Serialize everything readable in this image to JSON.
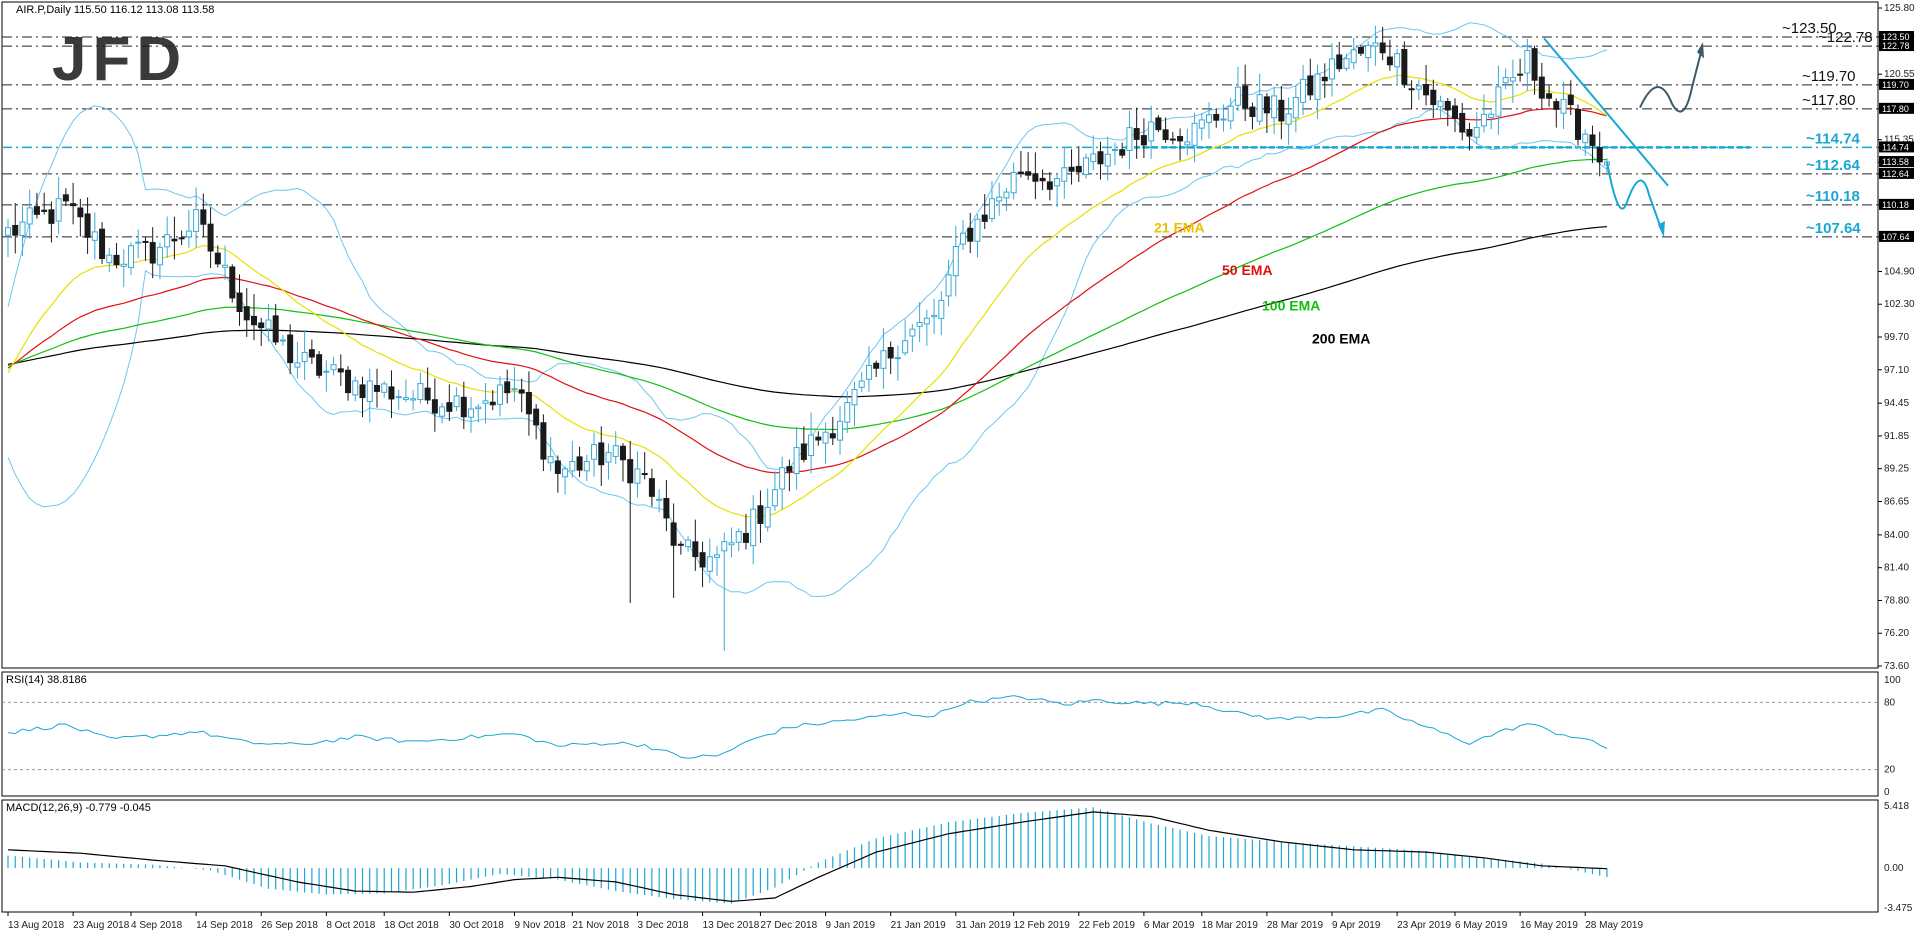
{
  "chart_data": {
    "type": "candlestick",
    "symbol_header": "AIR.P,Daily  115.50 116.12 113.08 113.58",
    "watermark": "JFD",
    "price_axis": {
      "ylim": [
        73.6,
        125.8
      ],
      "ticks": [
        "125.80",
        "123.50",
        "122.78",
        "120.55",
        "119.70",
        "117.80",
        "115.35",
        "114.74",
        "113.58",
        "112.64",
        "110.18",
        "107.64",
        "104.90",
        "102.30",
        "99.70",
        "97.10",
        "94.45",
        "91.85",
        "89.25",
        "86.65",
        "84.00",
        "81.40",
        "78.80",
        "76.20",
        "73.60"
      ]
    },
    "x_dates": [
      "13 Aug 2018",
      "23 Aug 2018",
      "4 Sep 2018",
      "14 Sep 2018",
      "26 Sep 2018",
      "8 Oct 2018",
      "18 Oct 2018",
      "30 Oct 2018",
      "9 Nov 2018",
      "21 Nov 2018",
      "3 Dec 2018",
      "13 Dec 2018",
      "27 Dec 2018",
      "9 Jan 2019",
      "21 Jan 2019",
      "31 Jan 2019",
      "12 Feb 2019",
      "22 Feb 2019",
      "6 Mar 2019",
      "18 Mar 2019",
      "28 Mar 2019",
      "9 Apr 2019",
      "23 Apr 2019",
      "6 May 2019",
      "16 May 2019",
      "28 May 2019"
    ],
    "levels": [
      {
        "value": 123.5,
        "label": "~123.50",
        "style": "dark"
      },
      {
        "value": 122.78,
        "label": "~122.78",
        "style": "dark"
      },
      {
        "value": 119.7,
        "label": "~119.70",
        "style": "dark"
      },
      {
        "value": 117.8,
        "label": "~117.80",
        "style": "dark"
      },
      {
        "value": 114.74,
        "label": "~114.74",
        "style": "cyan"
      },
      {
        "value": 112.64,
        "label": "~112.64",
        "style": "cyan"
      },
      {
        "value": 110.18,
        "label": "~110.18",
        "style": "cyan"
      },
      {
        "value": 107.64,
        "label": "~107.64",
        "style": "cyan"
      }
    ],
    "ema_labels": [
      {
        "text": "21 EMA",
        "color": "#e8c200"
      },
      {
        "text": "50 EMA",
        "color": "#e01010"
      },
      {
        "text": "100 EMA",
        "color": "#10c010"
      },
      {
        "text": "200 EMA",
        "color": "#000000"
      }
    ],
    "anchors_close": [
      [
        0,
        108.0
      ],
      [
        8,
        110.0
      ],
      [
        14,
        106.0
      ],
      [
        20,
        106.5
      ],
      [
        26,
        108.8
      ],
      [
        33,
        101.5
      ],
      [
        40,
        97.8
      ],
      [
        48,
        96.0
      ],
      [
        56,
        95.0
      ],
      [
        64,
        94.5
      ],
      [
        70,
        95.5
      ],
      [
        76,
        89.0
      ],
      [
        83,
        90.5
      ],
      [
        88,
        88.5
      ],
      [
        93,
        82.5
      ],
      [
        98,
        82.0
      ],
      [
        103,
        85.0
      ],
      [
        108,
        89.5
      ],
      [
        116,
        94.0
      ],
      [
        124,
        100.0
      ],
      [
        128,
        101.0
      ],
      [
        132,
        107.5
      ],
      [
        140,
        113.0
      ],
      [
        146,
        112.0
      ],
      [
        150,
        113.5
      ],
      [
        158,
        116.5
      ],
      [
        164,
        116.0
      ],
      [
        170,
        118.5
      ],
      [
        176,
        117.5
      ],
      [
        184,
        121.5
      ],
      [
        190,
        122.8
      ],
      [
        196,
        119.0
      ],
      [
        202,
        115.8
      ],
      [
        206,
        118.5
      ],
      [
        210,
        121.5
      ],
      [
        214,
        118.0
      ],
      [
        218,
        116.0
      ],
      [
        221,
        113.58
      ]
    ],
    "last_close": 113.58,
    "rsi": {
      "label": "RSI(14) 38.8186",
      "ylim": [
        0,
        100
      ],
      "ticks": [
        "100",
        "80",
        "20",
        "0"
      ],
      "anchors": [
        [
          0,
          53
        ],
        [
          8,
          60
        ],
        [
          14,
          47
        ],
        [
          20,
          50
        ],
        [
          26,
          54
        ],
        [
          33,
          44
        ],
        [
          40,
          42
        ],
        [
          48,
          49
        ],
        [
          56,
          45
        ],
        [
          64,
          49
        ],
        [
          70,
          52
        ],
        [
          76,
          41
        ],
        [
          83,
          44
        ],
        [
          88,
          42
        ],
        [
          93,
          31
        ],
        [
          98,
          32
        ],
        [
          103,
          47
        ],
        [
          108,
          58
        ],
        [
          116,
          64
        ],
        [
          124,
          70
        ],
        [
          128,
          68
        ],
        [
          132,
          80
        ],
        [
          140,
          85
        ],
        [
          146,
          78
        ],
        [
          150,
          82
        ],
        [
          158,
          79
        ],
        [
          164,
          80
        ],
        [
          170,
          70
        ],
        [
          176,
          65
        ],
        [
          184,
          68
        ],
        [
          190,
          73
        ],
        [
          196,
          58
        ],
        [
          202,
          44
        ],
        [
          206,
          53
        ],
        [
          210,
          61
        ],
        [
          214,
          53
        ],
        [
          218,
          47
        ],
        [
          221,
          38.8
        ]
      ]
    },
    "macd": {
      "label": "MACD(12,26,9) -0.779 -0.045",
      "ylim": [
        -3.475,
        5.418
      ],
      "ticks": [
        "5.418",
        "0.00",
        "-3.475"
      ],
      "signal_anchors": [
        [
          0,
          1.6
        ],
        [
          10,
          1.3
        ],
        [
          20,
          0.7
        ],
        [
          30,
          0.2
        ],
        [
          40,
          -1.2
        ],
        [
          48,
          -2.0
        ],
        [
          56,
          -2.1
        ],
        [
          64,
          -1.6
        ],
        [
          70,
          -1.0
        ],
        [
          76,
          -0.8
        ],
        [
          84,
          -1.2
        ],
        [
          92,
          -2.3
        ],
        [
          100,
          -2.9
        ],
        [
          106,
          -2.6
        ],
        [
          112,
          -0.8
        ],
        [
          120,
          1.4
        ],
        [
          130,
          3.0
        ],
        [
          140,
          4.0
        ],
        [
          150,
          4.9
        ],
        [
          158,
          4.5
        ],
        [
          166,
          3.3
        ],
        [
          176,
          2.3
        ],
        [
          186,
          1.6
        ],
        [
          196,
          1.4
        ],
        [
          204,
          0.9
        ],
        [
          212,
          0.2
        ],
        [
          221,
          -0.05
        ]
      ],
      "hist_anchors": [
        [
          0,
          1.1
        ],
        [
          10,
          0.5
        ],
        [
          20,
          0.3
        ],
        [
          28,
          -0.2
        ],
        [
          36,
          -1.8
        ],
        [
          44,
          -2.3
        ],
        [
          52,
          -2.2
        ],
        [
          60,
          -1.5
        ],
        [
          68,
          -0.5
        ],
        [
          76,
          -1.0
        ],
        [
          84,
          -2.0
        ],
        [
          92,
          -2.7
        ],
        [
          100,
          -3.1
        ],
        [
          106,
          -1.7
        ],
        [
          112,
          0.5
        ],
        [
          120,
          2.6
        ],
        [
          130,
          4.0
        ],
        [
          140,
          4.8
        ],
        [
          150,
          5.3
        ],
        [
          158,
          3.9
        ],
        [
          166,
          2.8
        ],
        [
          176,
          2.3
        ],
        [
          186,
          1.9
        ],
        [
          196,
          1.5
        ],
        [
          204,
          0.9
        ],
        [
          212,
          0.4
        ],
        [
          221,
          -0.78
        ]
      ]
    }
  }
}
